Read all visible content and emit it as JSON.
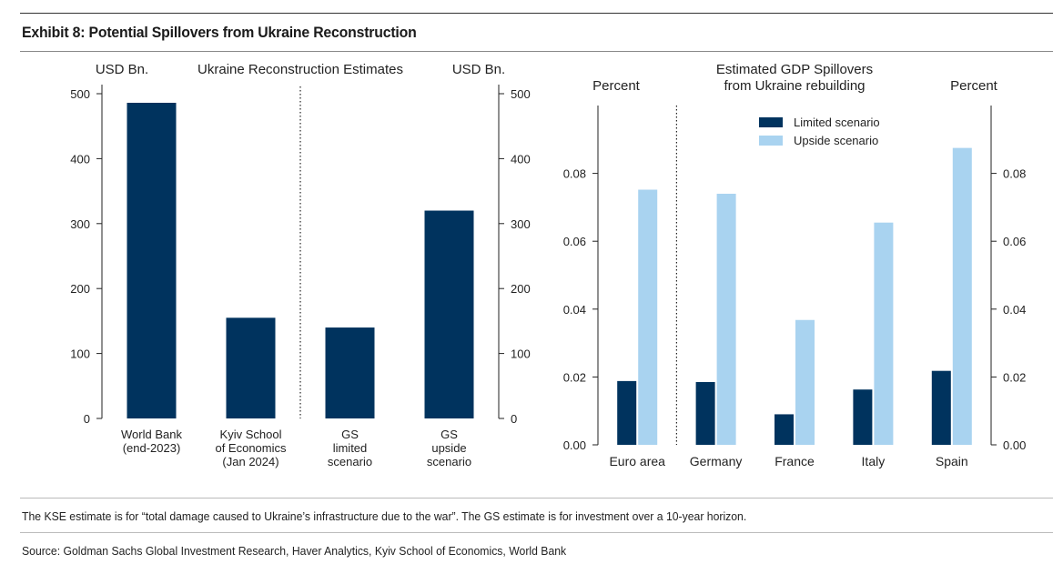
{
  "exhibit_title": "Exhibit 8: Potential Spillovers from Ukraine Reconstruction",
  "footnote": "The KSE estimate is for “total damage caused to Ukraine’s infrastructure due to the war”. The GS estimate is for investment over a 10-year horizon.",
  "source": "Source: Goldman Sachs Global Investment Research, Haver Analytics, Kyiv School of Economics, World Bank",
  "colors": {
    "dark": "#00335e",
    "light": "#a9d3f0",
    "axis": "#222222"
  },
  "chart_data": [
    {
      "type": "bar",
      "title": "Ukraine Reconstruction Estimates",
      "ylabel_left": "USD Bn.",
      "ylabel_right": "USD Bn.",
      "ylim": [
        0,
        500
      ],
      "yticks": [
        "0",
        "100",
        "200",
        "300",
        "400",
        "500"
      ],
      "yticks_right": [
        "0",
        "100",
        "200",
        "300",
        "400",
        "500"
      ],
      "categories": [
        [
          "World Bank",
          "(end-2023)"
        ],
        [
          "Kyiv School",
          "of Economics",
          "(Jan 2024)"
        ],
        [
          "GS",
          "limited",
          "scenario"
        ],
        [
          "GS",
          "upside",
          "scenario"
        ]
      ],
      "values": [
        486,
        155,
        140,
        320
      ],
      "divider_after_category": 2,
      "grid": false
    },
    {
      "type": "bar",
      "title": [
        "Estimated GDP Spillovers",
        "from Ukraine rebuilding"
      ],
      "ylabel_left": "Percent",
      "ylabel_right": "Percent",
      "ylim": [
        0,
        0.1
      ],
      "yticks": [
        "0.00",
        "0.02",
        "0.04",
        "0.06",
        "0.08"
      ],
      "yticks_right": [
        "0.00",
        "0.02",
        "0.04",
        "0.06",
        "0.08"
      ],
      "categories": [
        "Euro area",
        "Germany",
        "France",
        "Italy",
        "Spain"
      ],
      "series": [
        {
          "name": "Limited scenario",
          "values": [
            0.0188,
            0.0185,
            0.009,
            0.0163,
            0.0218
          ]
        },
        {
          "name": "Upside scenario",
          "values": [
            0.0752,
            0.074,
            0.0368,
            0.0655,
            0.0875
          ]
        }
      ],
      "legend_position": "top-right",
      "divider_after_category": 1,
      "grid": false
    }
  ]
}
